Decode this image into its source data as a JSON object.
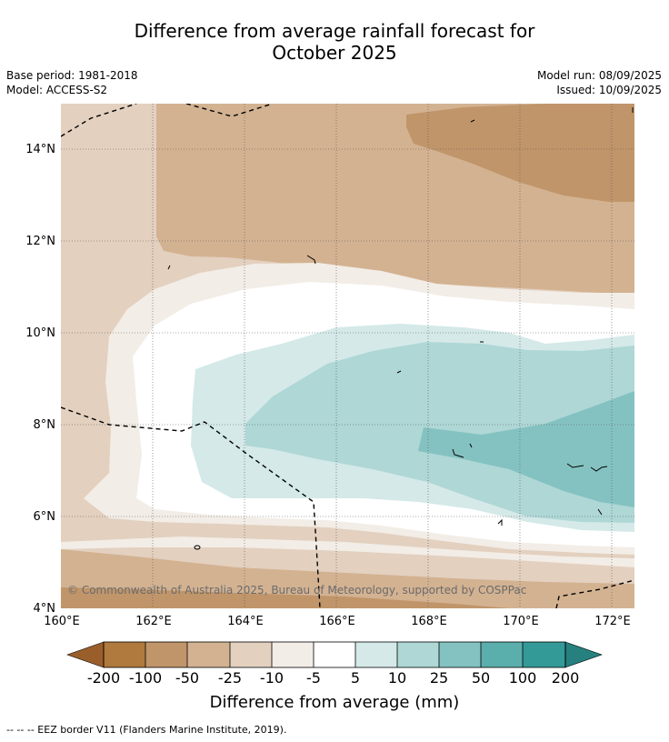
{
  "header": {
    "title_line1": "Difference from average rainfall forecast for",
    "title_line2": "October 2025",
    "base_period": "Base period: 1981-2018",
    "model": "Model: ACCESS-S2",
    "model_run": "Model run: 08/09/2025",
    "issued": "Issued: 10/09/2025"
  },
  "map": {
    "copyright": "© Commonwealth of Australia 2025, Bureau of Meteorology, supported by COSPPac",
    "lon_labels": [
      "160°E",
      "162°E",
      "164°E",
      "166°E",
      "168°E",
      "170°E",
      "172°E"
    ],
    "lat_labels": [
      "14°N",
      "12°N",
      "10°N",
      "8°N",
      "6°N",
      "4°N"
    ],
    "lon_range": [
      160,
      172.5
    ],
    "lat_range": [
      4,
      15
    ]
  },
  "colorbar": {
    "title": "Difference from average (mm)",
    "ticks": [
      "-200",
      "-100",
      "-50",
      "-25",
      "-10",
      "-5",
      "5",
      "10",
      "25",
      "50",
      "100",
      "200"
    ],
    "colors": {
      "lt_-200": "#9a5e2b",
      "-200_-100": "#b07a3f",
      "-100_-50": "#c0956a",
      "-50_-25": "#d3b292",
      "-25_-10": "#e3d0bf",
      "-10_-5": "#f2ede6",
      "-5_5": "#ffffff",
      "5_10": "#d4e9e8",
      "10_25": "#aed7d6",
      "25_50": "#84c2c1",
      "50_100": "#5aaeac",
      "100_200": "#339a98",
      "gt_200": "#25807e"
    }
  },
  "footnote": "-- -- -- EEZ border V11 (Flanders Marine Institute, 2019)."
}
